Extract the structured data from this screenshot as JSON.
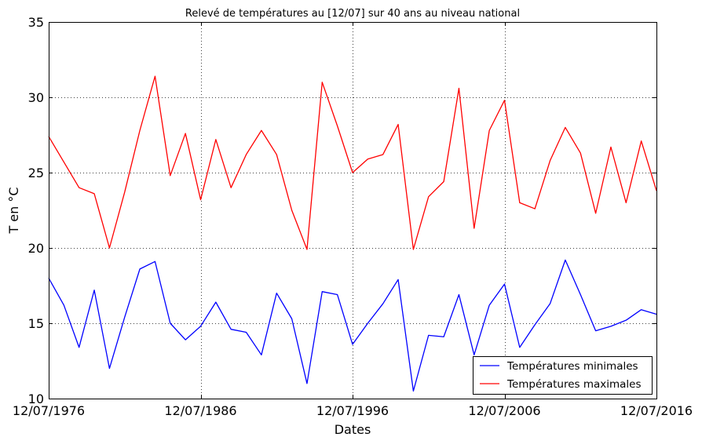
{
  "chart_data": {
    "type": "line",
    "title": "Relevé de températures au [12/07] sur 40 ans au niveau national",
    "xlabel": "Dates",
    "ylabel": "T en °C",
    "x_ticks": [
      "12/07/1976",
      "12/07/1986",
      "12/07/1996",
      "12/07/2006",
      "12/07/2016"
    ],
    "x_tick_years": [
      1976,
      1986,
      1996,
      2006,
      2016
    ],
    "y_ticks": [
      "10",
      "15",
      "20",
      "25",
      "30",
      "35"
    ],
    "xlim": [
      1976,
      2016
    ],
    "ylim": [
      10,
      35
    ],
    "grid": true,
    "legend_position": "bottom-right",
    "x": [
      1976,
      1977,
      1978,
      1979,
      1980,
      1981,
      1982,
      1983,
      1984,
      1985,
      1986,
      1987,
      1988,
      1989,
      1990,
      1991,
      1992,
      1993,
      1994,
      1995,
      1996,
      1997,
      1998,
      1999,
      2000,
      2001,
      2002,
      2003,
      2004,
      2005,
      2006,
      2007,
      2008,
      2009,
      2010,
      2011,
      2012,
      2013,
      2014,
      2015,
      2016
    ],
    "series": [
      {
        "name": "Températures minimales",
        "color": "#0000ff",
        "values": [
          18.0,
          16.2,
          13.4,
          17.2,
          12.0,
          15.4,
          18.6,
          19.1,
          15.0,
          13.9,
          14.8,
          16.4,
          14.6,
          14.4,
          12.9,
          17.0,
          15.3,
          11.0,
          17.1,
          16.9,
          13.6,
          15.0,
          16.3,
          17.9,
          10.5,
          14.2,
          14.1,
          16.9,
          12.9,
          16.2,
          17.6,
          13.4,
          14.9,
          16.3,
          19.2,
          16.9,
          14.5,
          14.8,
          15.2,
          15.9,
          15.6
        ]
      },
      {
        "name": "Températures maximales",
        "color": "#ff0000",
        "values": [
          27.4,
          25.7,
          24.0,
          23.6,
          20.0,
          23.7,
          27.8,
          31.4,
          24.8,
          27.6,
          23.2,
          27.2,
          24.0,
          26.2,
          27.8,
          26.2,
          22.5,
          19.9,
          31.0,
          28.1,
          25.0,
          25.9,
          26.2,
          28.2,
          19.9,
          23.4,
          24.4,
          30.6,
          21.3,
          27.8,
          29.8,
          23.0,
          22.6,
          25.8,
          28.0,
          26.3,
          22.3,
          26.7,
          23.0,
          27.1,
          23.8
        ]
      }
    ]
  }
}
